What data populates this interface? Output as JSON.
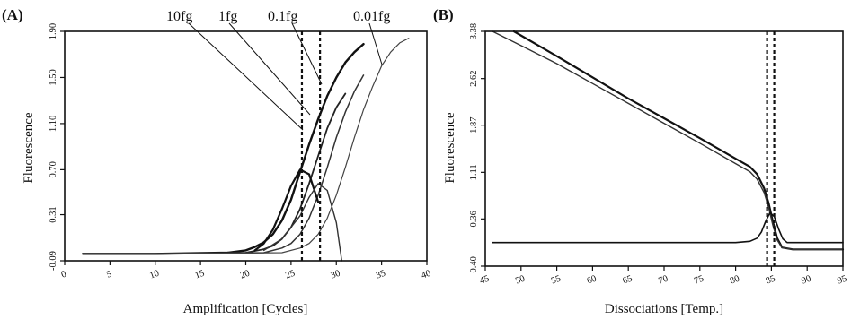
{
  "chart_data": [
    {
      "panel": "(A)",
      "type": "line",
      "xlabel": "Amplification [Cycles]",
      "ylabel": "Fluorescence",
      "xlim": [
        0,
        40
      ],
      "ylim": [
        -0.09,
        1.9
      ],
      "xticks": [
        "0",
        "5",
        "10",
        "15",
        "20",
        "25",
        "30",
        "35",
        "40"
      ],
      "yticks": [
        "-0.09",
        "0.31",
        "0.70",
        "1.10",
        "1.50",
        "1.90"
      ],
      "threshold_cycles": [
        26.2,
        28.2
      ],
      "series": [
        {
          "name": "10fg",
          "color": "#111111",
          "width": 2.4,
          "x": [
            2,
            10,
            18,
            20,
            21,
            22,
            23,
            24,
            25,
            26,
            27,
            28,
            29,
            30,
            31,
            32,
            33
          ],
          "y": [
            -0.03,
            -0.03,
            -0.02,
            0.0,
            0.03,
            0.07,
            0.14,
            0.26,
            0.44,
            0.68,
            0.92,
            1.14,
            1.34,
            1.5,
            1.63,
            1.72,
            1.79
          ]
        },
        {
          "name": "1fg",
          "color": "#222222",
          "width": 1.8,
          "x": [
            2,
            10,
            20,
            22,
            23,
            24,
            25,
            26,
            27,
            28,
            29,
            30,
            31
          ],
          "y": [
            -0.03,
            -0.03,
            -0.02,
            0.01,
            0.04,
            0.1,
            0.2,
            0.36,
            0.58,
            0.82,
            1.06,
            1.24,
            1.36
          ]
        },
        {
          "name": "0.1fg",
          "color": "#333333",
          "width": 1.5,
          "x": [
            2,
            10,
            22,
            24,
            25,
            26,
            27,
            28,
            29,
            30,
            31,
            32,
            33
          ],
          "y": [
            -0.03,
            -0.03,
            -0.02,
            0.02,
            0.06,
            0.14,
            0.28,
            0.48,
            0.72,
            0.98,
            1.2,
            1.38,
            1.52
          ]
        },
        {
          "name": "0.01fg",
          "color": "#444444",
          "width": 1.2,
          "x": [
            2,
            10,
            24,
            26,
            27,
            28,
            29,
            30,
            31,
            32,
            33,
            34,
            35,
            36,
            37,
            38
          ],
          "y": [
            -0.03,
            -0.03,
            -0.02,
            0.02,
            0.06,
            0.14,
            0.28,
            0.48,
            0.72,
            0.98,
            1.22,
            1.42,
            1.6,
            1.72,
            1.8,
            1.84
          ]
        },
        {
          "name": "",
          "color": "#111111",
          "width": 2.2,
          "x": [
            21,
            22,
            23,
            24,
            25,
            26,
            27,
            28
          ],
          "y": [
            0.0,
            0.06,
            0.18,
            0.36,
            0.56,
            0.7,
            0.66,
            0.42
          ]
        },
        {
          "name": "",
          "color": "#333333",
          "width": 1.4,
          "x": [
            22,
            24,
            26,
            27,
            28,
            29,
            30,
            30.6
          ],
          "y": [
            0.0,
            0.1,
            0.3,
            0.46,
            0.58,
            0.52,
            0.24,
            -0.09
          ]
        }
      ]
    },
    {
      "panel": "(B)",
      "type": "line",
      "xlabel": "Dissociations [Temp.]",
      "ylabel": "Fluorescence",
      "xlim": [
        45,
        95
      ],
      "ylim": [
        -0.4,
        3.38
      ],
      "xticks": [
        "45",
        "50",
        "55",
        "60",
        "65",
        "70",
        "75",
        "80",
        "85",
        "90",
        "95"
      ],
      "yticks": [
        "-0.40",
        "0.36",
        "1.11",
        "1.87",
        "2.62",
        "3.38"
      ],
      "threshold_temps": [
        84.4,
        85.4
      ],
      "series": [
        {
          "name": "",
          "color": "#111111",
          "width": 2.2,
          "x": [
            49,
            55,
            60,
            65,
            70,
            75,
            80,
            82,
            83,
            84,
            84.6,
            85.2,
            85.8,
            86.5,
            88,
            95
          ],
          "y": [
            3.38,
            2.98,
            2.64,
            2.3,
            1.98,
            1.66,
            1.33,
            1.2,
            1.08,
            0.85,
            0.62,
            0.32,
            0.05,
            -0.1,
            -0.13,
            -0.13
          ]
        },
        {
          "name": "",
          "color": "#333333",
          "width": 1.4,
          "x": [
            46,
            50,
            55,
            60,
            65,
            70,
            75,
            80,
            82,
            83,
            84,
            84.6,
            85.2,
            85.8,
            86.5,
            88,
            95
          ],
          "y": [
            3.38,
            3.15,
            2.86,
            2.54,
            2.22,
            1.9,
            1.58,
            1.25,
            1.12,
            1.0,
            0.78,
            0.55,
            0.26,
            0.02,
            -0.1,
            -0.13,
            -0.13
          ]
        },
        {
          "name": "",
          "color": "#111111",
          "width": 1.6,
          "x": [
            46,
            55,
            65,
            75,
            80,
            82,
            83,
            83.6,
            84.2,
            84.8,
            85.4,
            86,
            86.6,
            87.2,
            88,
            95
          ],
          "y": [
            -0.02,
            -0.02,
            -0.02,
            -0.02,
            -0.02,
            0.0,
            0.05,
            0.15,
            0.32,
            0.46,
            0.4,
            0.2,
            0.04,
            -0.02,
            -0.02,
            -0.02
          ]
        }
      ]
    }
  ]
}
